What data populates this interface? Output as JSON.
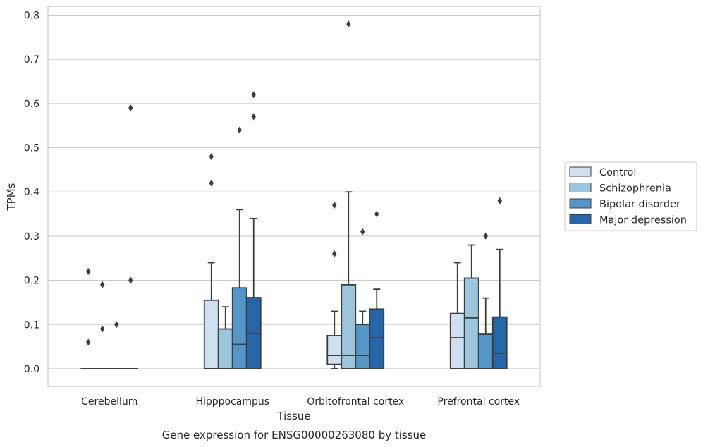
{
  "caption": "Gene expression for ENSG00000263080 by tissue",
  "chart_data": {
    "type": "box",
    "xlabel": "Tissue",
    "ylabel": "TPMs",
    "ylim": [
      -0.04,
      0.82
    ],
    "yticks": [
      0.0,
      0.1,
      0.2,
      0.3,
      0.4,
      0.5,
      0.6,
      0.7,
      0.8
    ],
    "ytick_labels": [
      "0.0",
      "0.1",
      "0.2",
      "0.3",
      "0.4",
      "0.5",
      "0.6",
      "0.7",
      "0.8"
    ],
    "grid": "horizontal",
    "legend_position": "right",
    "categories": [
      "Cerebellum",
      "Hipppocampus",
      "Orbitofrontal cortex",
      "Prefrontal cortex"
    ],
    "series": [
      {
        "name": "Control",
        "color": "#cedff0",
        "boxes": [
          {
            "q1": 0.0,
            "median": 0.0,
            "q3": 0.0,
            "whisker_low": 0.0,
            "whisker_high": 0.0,
            "outliers": [
              0.06,
              0.22
            ]
          },
          {
            "q1": 0.0,
            "median": 0.0,
            "q3": 0.155,
            "whisker_low": 0.0,
            "whisker_high": 0.24,
            "outliers": [
              0.42,
              0.48
            ]
          },
          {
            "q1": 0.01,
            "median": 0.03,
            "q3": 0.075,
            "whisker_low": 0.0,
            "whisker_high": 0.13,
            "outliers": [
              0.26,
              0.37
            ]
          },
          {
            "q1": 0.0,
            "median": 0.07,
            "q3": 0.125,
            "whisker_low": 0.0,
            "whisker_high": 0.24,
            "outliers": []
          }
        ]
      },
      {
        "name": "Schizophrenia",
        "color": "#9bc4dd",
        "boxes": [
          {
            "q1": 0.0,
            "median": 0.0,
            "q3": 0.0,
            "whisker_low": 0.0,
            "whisker_high": 0.0,
            "outliers": [
              0.09,
              0.19
            ]
          },
          {
            "q1": 0.0,
            "median": 0.0,
            "q3": 0.09,
            "whisker_low": 0.0,
            "whisker_high": 0.14,
            "outliers": []
          },
          {
            "q1": 0.0,
            "median": 0.03,
            "q3": 0.19,
            "whisker_low": 0.0,
            "whisker_high": 0.4,
            "outliers": [
              0.78
            ]
          },
          {
            "q1": 0.0,
            "median": 0.115,
            "q3": 0.205,
            "whisker_low": 0.0,
            "whisker_high": 0.28,
            "outliers": []
          }
        ]
      },
      {
        "name": "Bipolar disorder",
        "color": "#5596c8",
        "boxes": [
          {
            "q1": 0.0,
            "median": 0.0,
            "q3": 0.0,
            "whisker_low": 0.0,
            "whisker_high": 0.0,
            "outliers": [
              0.1
            ]
          },
          {
            "q1": 0.0,
            "median": 0.055,
            "q3": 0.183,
            "whisker_low": 0.0,
            "whisker_high": 0.36,
            "outliers": [
              0.54
            ]
          },
          {
            "q1": 0.0,
            "median": 0.03,
            "q3": 0.1,
            "whisker_low": 0.0,
            "whisker_high": 0.13,
            "outliers": [
              0.31
            ]
          },
          {
            "q1": 0.0,
            "median": 0.0,
            "q3": 0.078,
            "whisker_low": 0.0,
            "whisker_high": 0.16,
            "outliers": [
              0.3
            ]
          }
        ]
      },
      {
        "name": "Major depression",
        "color": "#2565a8",
        "boxes": [
          {
            "q1": 0.0,
            "median": 0.0,
            "q3": 0.0,
            "whisker_low": 0.0,
            "whisker_high": 0.0,
            "outliers": [
              0.2,
              0.59
            ]
          },
          {
            "q1": 0.0,
            "median": 0.08,
            "q3": 0.161,
            "whisker_low": 0.0,
            "whisker_high": 0.34,
            "outliers": [
              0.57,
              0.62
            ]
          },
          {
            "q1": 0.0,
            "median": 0.07,
            "q3": 0.135,
            "whisker_low": 0.0,
            "whisker_high": 0.18,
            "outliers": [
              0.35
            ]
          },
          {
            "q1": 0.0,
            "median": 0.035,
            "q3": 0.117,
            "whisker_low": 0.0,
            "whisker_high": 0.27,
            "outliers": [
              0.38
            ]
          }
        ]
      }
    ]
  }
}
